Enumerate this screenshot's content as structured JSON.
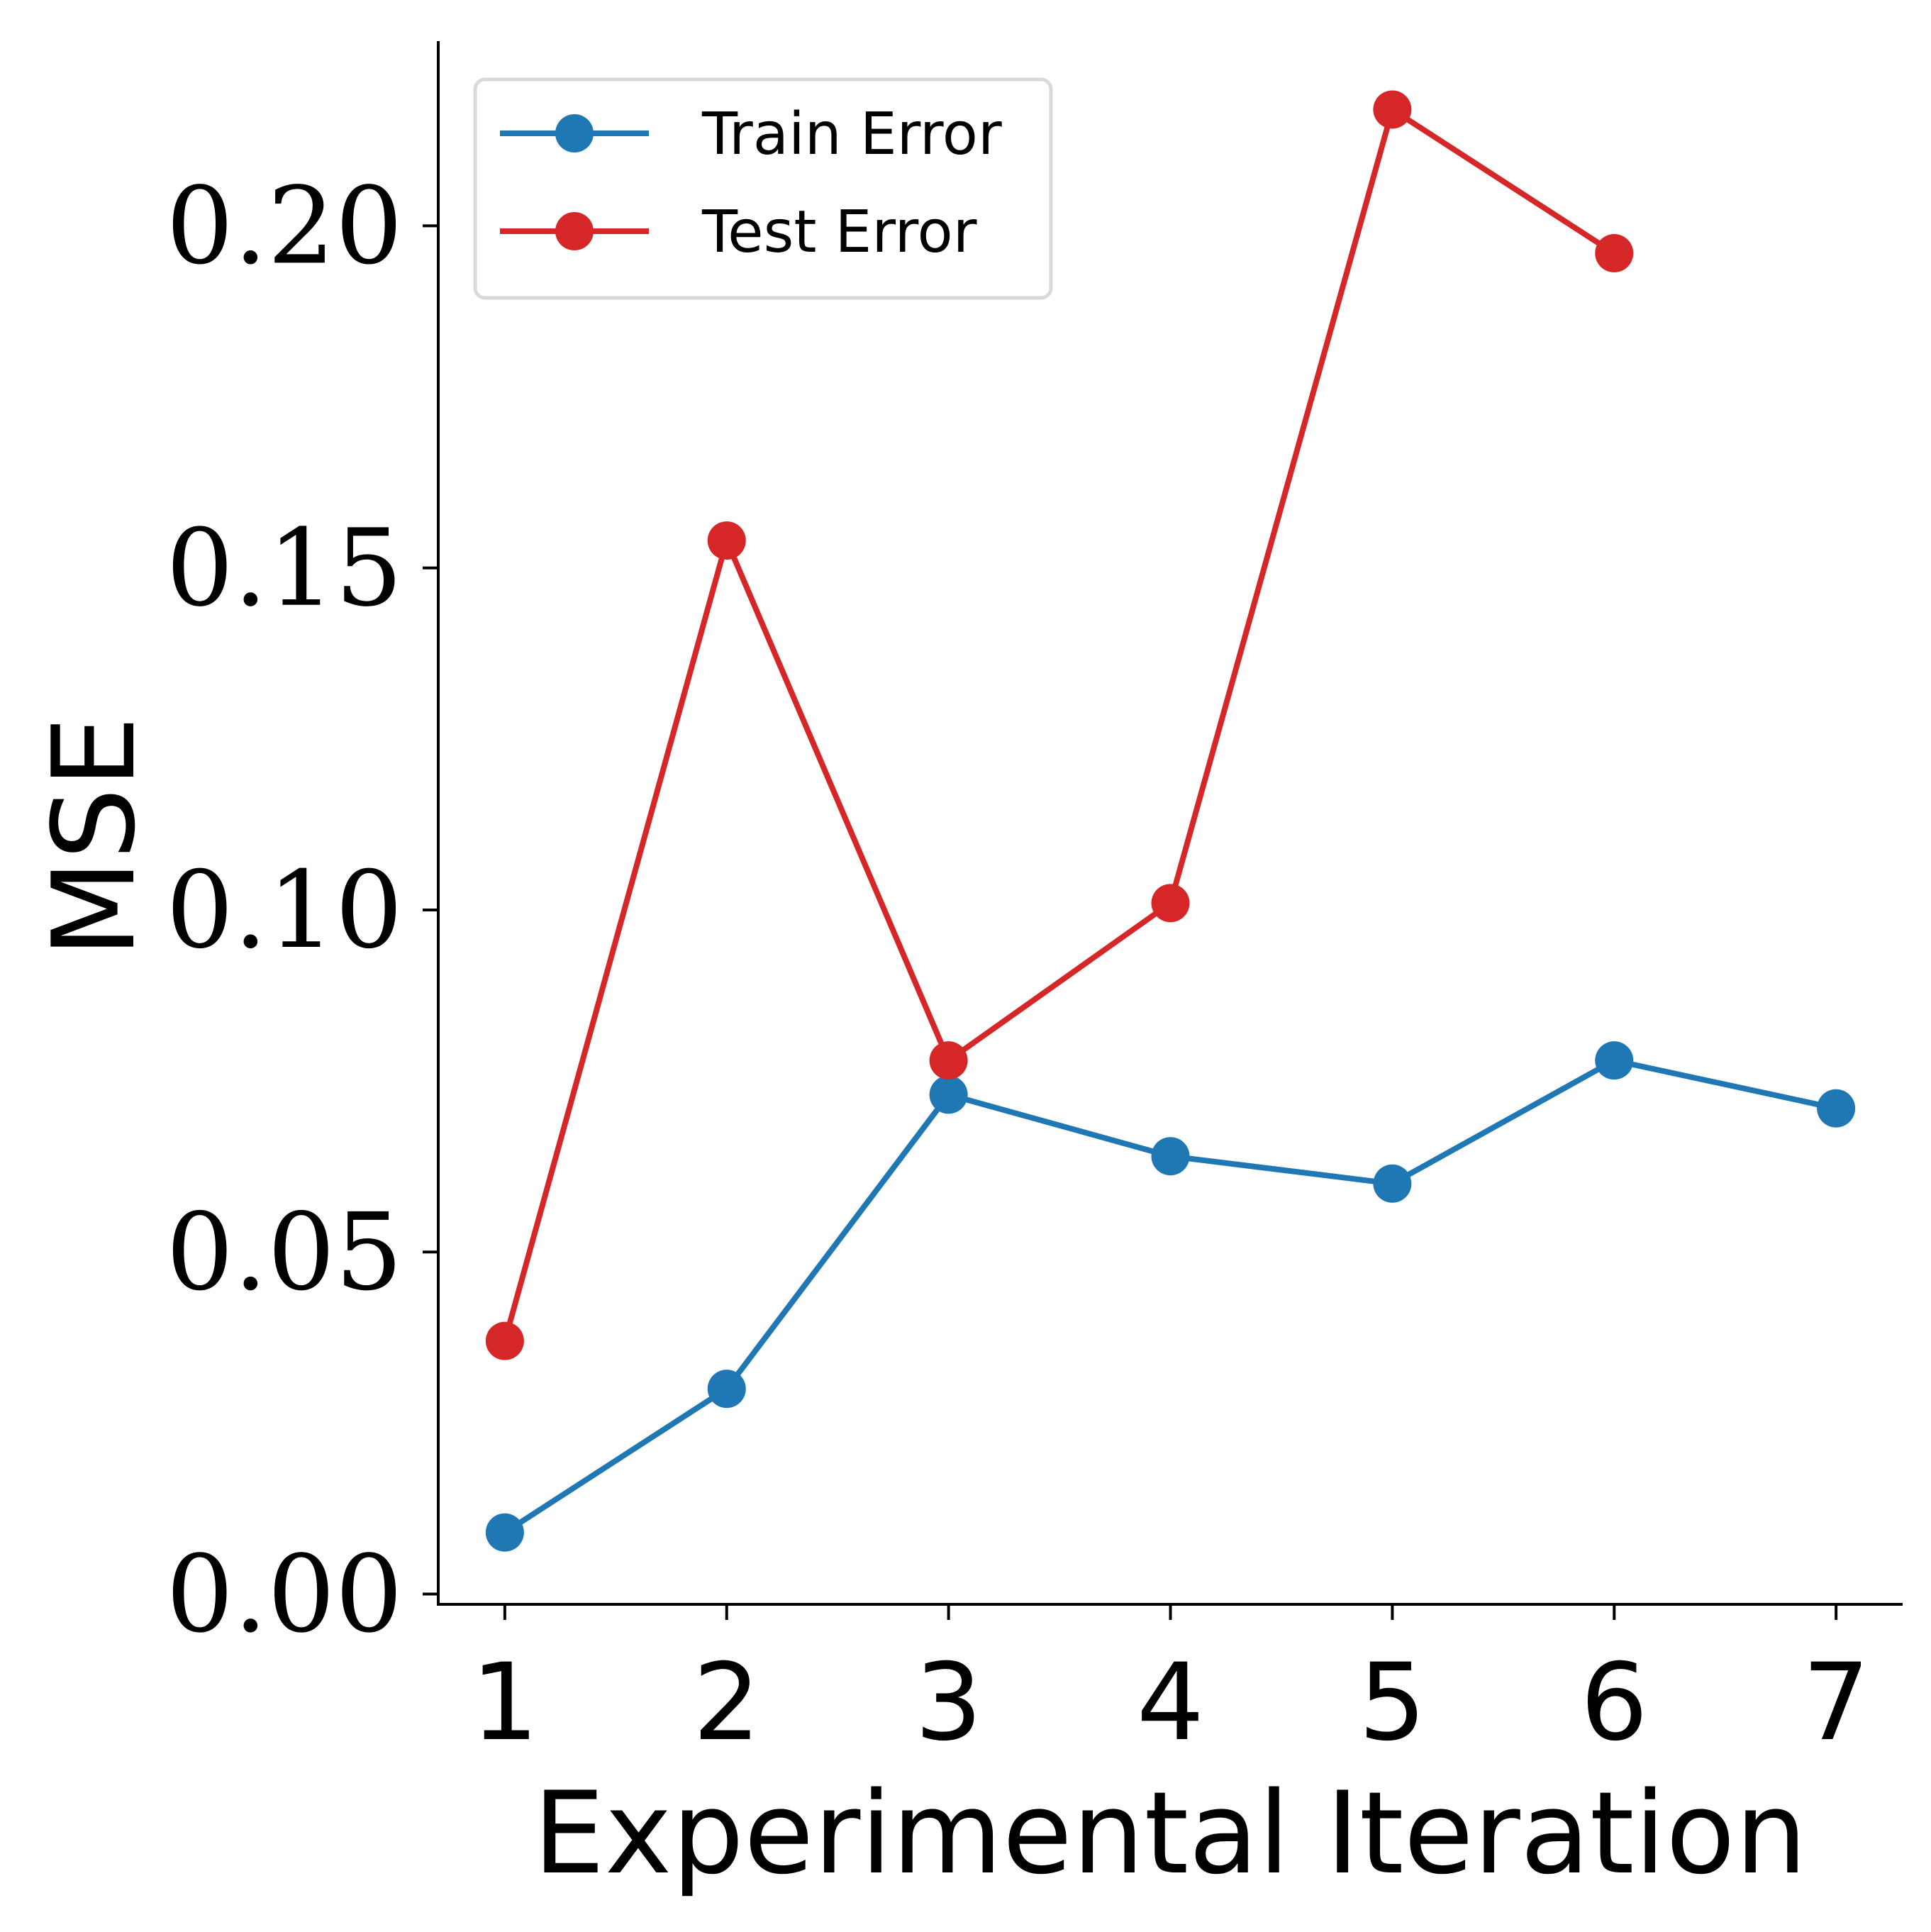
{
  "chart_data": {
    "type": "line",
    "title": "",
    "xlabel": "Experimental Iteration",
    "ylabel": "MSE",
    "x": [
      1,
      2,
      3,
      4,
      5,
      6,
      7
    ],
    "x_tick_labels": [
      "1",
      "2",
      "3",
      "4",
      "5",
      "6",
      "7"
    ],
    "xlim": [
      0.7,
      7.3
    ],
    "ylim": [
      -0.0015,
      0.227
    ],
    "y_ticks": [
      0.0,
      0.05,
      0.1,
      0.15,
      0.2
    ],
    "y_tick_labels": [
      "0.00",
      "0.05",
      "0.10",
      "0.15",
      "0.20"
    ],
    "grid": false,
    "legend_position": "top-left",
    "series": [
      {
        "name": "Train Error",
        "color": "#1f77b4",
        "marker": "circle",
        "x": [
          1,
          2,
          3,
          4,
          5,
          6,
          7
        ],
        "values": [
          0.009,
          0.03,
          0.073,
          0.064,
          0.06,
          0.078,
          0.071
        ]
      },
      {
        "name": "Test Error",
        "color": "#d62728",
        "marker": "circle",
        "x": [
          1,
          2,
          3,
          4,
          5,
          6
        ],
        "values": [
          0.037,
          0.154,
          0.078,
          0.101,
          0.217,
          0.196
        ]
      }
    ]
  }
}
